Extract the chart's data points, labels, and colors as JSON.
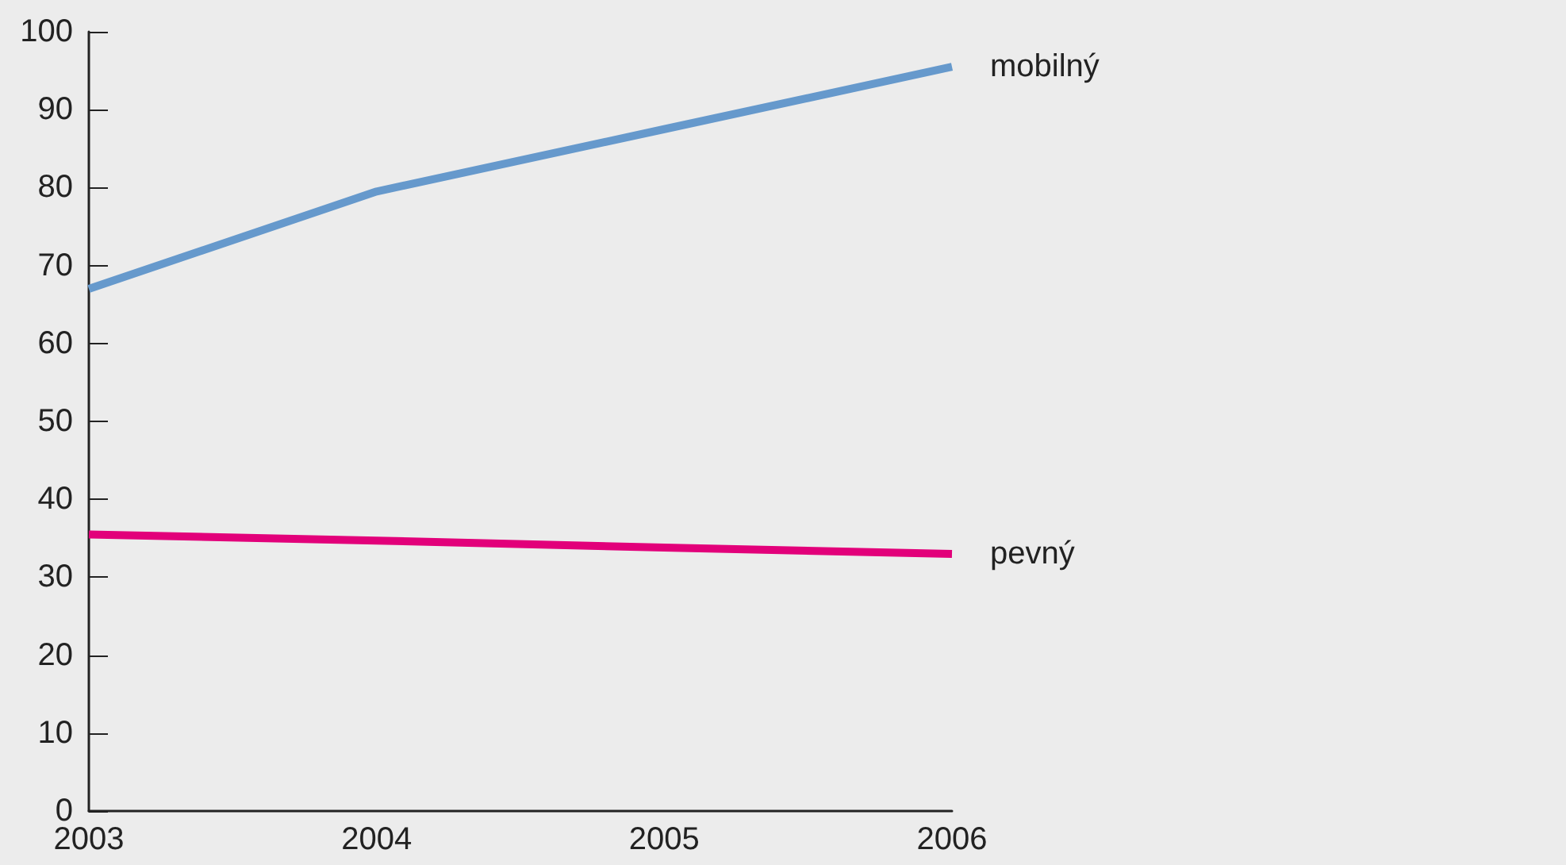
{
  "chart_data": {
    "type": "line",
    "categories": [
      "2003",
      "2004",
      "2005",
      "2006"
    ],
    "series": [
      {
        "name": "mobilný",
        "color": "#6699cc",
        "values": [
          67,
          79.5,
          87.5,
          95.5
        ]
      },
      {
        "name": "pevný",
        "color": "#e2007a",
        "values": [
          35.5,
          34.7,
          33.8,
          33
        ]
      }
    ],
    "ylim": [
      0,
      100
    ],
    "yticks": [
      0,
      10,
      20,
      30,
      40,
      50,
      60,
      70,
      80,
      90,
      100
    ],
    "grid": false,
    "legend": false,
    "marker": "none",
    "line_style": "solid"
  }
}
